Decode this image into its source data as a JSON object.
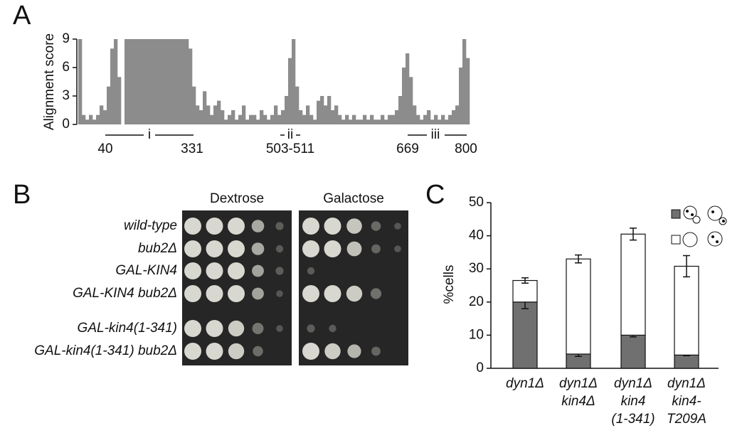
{
  "panel_labels": [
    "A",
    "B",
    "C"
  ],
  "chart_data": [
    {
      "type": "profile",
      "ylabel": "Alignment score",
      "ylim": [
        0,
        9
      ],
      "yticks": [
        0,
        3,
        6,
        9
      ],
      "color": "#8c8c8c",
      "values": [
        9,
        1,
        0.5,
        1,
        0.5,
        1,
        2,
        1.5,
        4,
        8,
        9,
        5,
        0,
        9,
        9,
        9,
        9,
        9,
        9,
        9,
        9,
        9,
        9,
        9,
        9,
        9,
        9,
        9,
        9,
        9,
        9,
        8,
        4,
        2,
        1.5,
        3.5,
        2,
        1,
        2,
        2.5,
        1.5,
        0.5,
        1,
        1.5,
        0.5,
        1,
        2,
        0.5,
        1,
        1,
        0.5,
        1.5,
        1,
        0.5,
        1,
        2,
        1,
        1.5,
        3,
        7,
        9,
        4,
        1.5,
        1,
        2,
        1,
        0.5,
        2.5,
        3,
        2,
        3,
        1.5,
        2,
        1,
        0.5,
        1,
        0.5,
        1,
        0.5,
        0.5,
        1,
        0.5,
        1,
        0.5,
        0.5,
        1,
        0.5,
        1,
        1,
        1.5,
        3,
        6,
        7.5,
        5,
        2,
        1,
        0.5,
        1,
        1.5,
        0.5,
        1,
        0.5,
        1,
        0.5,
        1,
        1.5,
        2,
        6,
        9,
        7
      ],
      "regions": [
        {
          "name": "i",
          "start": 40,
          "end": 331
        },
        {
          "name": "ii",
          "range": "503-511"
        },
        {
          "name": "iii",
          "start": 669,
          "end": 800
        }
      ]
    },
    {
      "type": "stacked_bar",
      "ylabel": "%cells",
      "ylim": [
        0,
        50
      ],
      "yticks": [
        0,
        10,
        20,
        30,
        40,
        50
      ],
      "categories": [
        [
          "dyn1Δ"
        ],
        [
          "dyn1Δ",
          "kin4Δ"
        ],
        [
          "dyn1Δ",
          "kin4",
          "(1-341)"
        ],
        [
          "dyn1Δ",
          "kin4-",
          "T209A"
        ]
      ],
      "series": [
        {
          "color": "#707070",
          "values": [
            20,
            4.3,
            10,
            4
          ],
          "errors": [
            2,
            0.7,
            0.5,
            0.2
          ]
        },
        {
          "color": "#ffffff",
          "values": [
            6.5,
            28.7,
            30.5,
            26.8
          ],
          "errors": [
            0.8,
            1.2,
            1.8,
            3.2
          ]
        }
      ]
    }
  ],
  "spot_assay": {
    "conditions": [
      "Dextrose",
      "Galactose"
    ],
    "strains": [
      "wild-type",
      "bub2Δ",
      "GAL-KIN4",
      "GAL-KIN4 bub2Δ",
      "GAL-kin4(1-341)",
      "GAL-kin4(1-341) bub2Δ"
    ]
  }
}
